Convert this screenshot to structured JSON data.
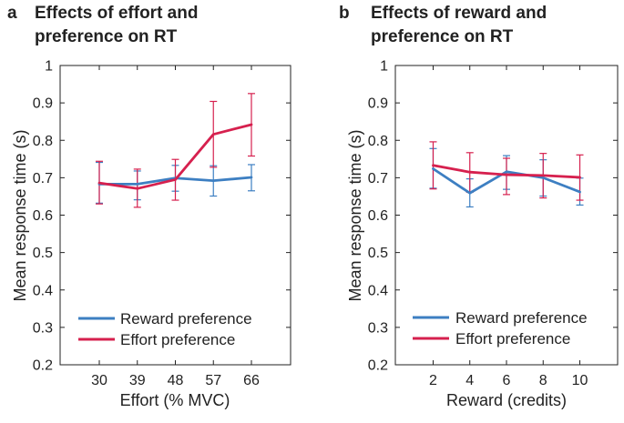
{
  "colors": {
    "reward": "#3d7fc2",
    "effort": "#d6204e",
    "axis": "#222222"
  },
  "chart_data": [
    {
      "type": "line",
      "panel_letter": "a",
      "title_lines": [
        "Effects of effort and",
        "preference on RT"
      ],
      "xlabel": "Effort (% MVC)",
      "ylabel": "Mean response time (s)",
      "categories": [
        "30",
        "39",
        "48",
        "57",
        "66"
      ],
      "ylim": [
        0.2,
        1.0
      ],
      "yticks": [
        "0.2",
        "0.3",
        "0.4",
        "0.5",
        "0.6",
        "0.7",
        "0.8",
        "0.9",
        "1"
      ],
      "legend_position": "bottom-left",
      "series": [
        {
          "name": "Reward preference",
          "color_key": "reward",
          "values": [
            0.683,
            0.683,
            0.699,
            0.692,
            0.701
          ],
          "err_low": [
            0.632,
            0.641,
            0.664,
            0.651,
            0.665
          ],
          "err_high": [
            0.741,
            0.718,
            0.733,
            0.732,
            0.735
          ]
        },
        {
          "name": "Effort preference",
          "color_key": "effort",
          "values": [
            0.686,
            0.671,
            0.695,
            0.816,
            0.842
          ],
          "err_low": [
            0.63,
            0.621,
            0.64,
            0.728,
            0.758
          ],
          "err_high": [
            0.744,
            0.723,
            0.749,
            0.904,
            0.925
          ]
        }
      ]
    },
    {
      "type": "line",
      "panel_letter": "b",
      "title_lines": [
        "Effects of reward and",
        "preference on RT"
      ],
      "xlabel": "Reward (credits)",
      "ylabel": "Mean response time (s)",
      "categories": [
        "2",
        "4",
        "6",
        "8",
        "10"
      ],
      "ylim": [
        0.2,
        1.0
      ],
      "yticks": [
        "0.2",
        "0.3",
        "0.4",
        "0.5",
        "0.6",
        "0.7",
        "0.8",
        "0.9",
        "1"
      ],
      "legend_position": "bottom-left",
      "series": [
        {
          "name": "Reward preference",
          "color_key": "reward",
          "values": [
            0.724,
            0.659,
            0.716,
            0.7,
            0.662
          ],
          "err_low": [
            0.672,
            0.622,
            0.669,
            0.651,
            0.627
          ],
          "err_high": [
            0.778,
            0.697,
            0.759,
            0.748,
            0.699
          ]
        },
        {
          "name": "Effort preference",
          "color_key": "effort",
          "values": [
            0.733,
            0.715,
            0.708,
            0.706,
            0.701
          ],
          "err_low": [
            0.67,
            0.661,
            0.655,
            0.646,
            0.64
          ],
          "err_high": [
            0.796,
            0.767,
            0.752,
            0.765,
            0.761
          ]
        }
      ]
    }
  ]
}
